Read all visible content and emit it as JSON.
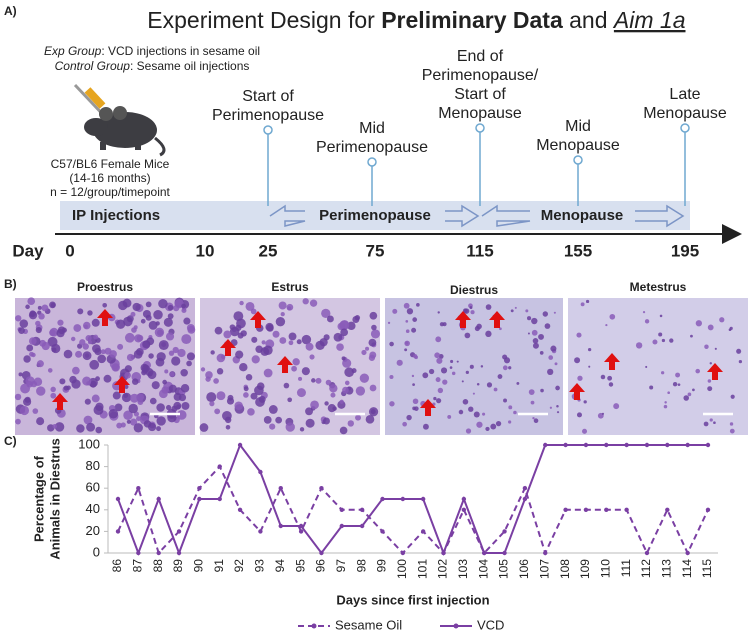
{
  "panel_a": {
    "panel_label": "A)",
    "title_parts": [
      "Experiment Design for ",
      "Preliminary Data",
      " and ",
      "Aim 1a"
    ],
    "exp_group": {
      "label": "Exp Group",
      "text": ": VCD injections in sesame oil"
    },
    "control_group": {
      "label": "Control Group",
      "text": ": Sesame oil injections"
    },
    "mouse_info": [
      "C57/BL6 Female Mice",
      "(14-16 months)",
      "n = 12/group/timepoint"
    ],
    "axis_label": "Day",
    "day_ticks": [
      0,
      10,
      25,
      75,
      115,
      155,
      195
    ],
    "milestones": [
      {
        "label_lines": [
          "Start of",
          "Perimenopause"
        ]
      },
      {
        "label_lines": [
          "Mid",
          "Perimenopause"
        ]
      },
      {
        "label_lines": [
          "End of",
          "Perimenopause/",
          "Start of",
          "Menopause"
        ]
      },
      {
        "label_lines": [
          "Mid",
          "Menopause"
        ]
      },
      {
        "label_lines": [
          "Late",
          "Menopause"
        ]
      }
    ],
    "phases": [
      "IP Injections",
      "Perimenopause",
      "Menopause"
    ]
  },
  "panel_b": {
    "panel_label": "B)",
    "images": [
      "Proestrus",
      "Estrus",
      "Diestrus",
      "Metestrus"
    ]
  },
  "chart_data": {
    "type": "line",
    "panel_label": "C)",
    "ylabel_lines": [
      "Percentage of",
      "Animals in Diestrus"
    ],
    "xlabel": "Days since first injection",
    "categories": [
      "86",
      "87",
      "88",
      "89",
      "90",
      "91",
      "92",
      "93",
      "94",
      "95",
      "96",
      "97",
      "98",
      "99",
      "100",
      "101",
      "102",
      "103",
      "104",
      "105",
      "106",
      "107",
      "108",
      "109",
      "110",
      "111",
      "112",
      "113",
      "114",
      "115"
    ],
    "ylim": [
      0,
      100
    ],
    "yticks": [
      0,
      20,
      40,
      60,
      80,
      100
    ],
    "series": [
      {
        "name": "Sesame Oil",
        "color": "#7a3fa3",
        "dashed": true,
        "values": [
          20,
          60,
          0,
          20,
          60,
          80,
          40,
          20,
          60,
          20,
          60,
          40,
          40,
          20,
          0,
          20,
          0,
          40,
          0,
          20,
          60,
          0,
          40,
          40,
          40,
          40,
          0,
          40,
          0,
          40
        ]
      },
      {
        "name": "VCD",
        "color": "#7a3fa3",
        "dashed": false,
        "values": [
          50,
          0,
          50,
          0,
          50,
          50,
          100,
          75,
          25,
          25,
          0,
          25,
          25,
          50,
          50,
          50,
          0,
          50,
          0,
          0,
          50,
          100,
          100,
          100,
          100,
          100,
          100,
          100,
          100,
          100
        ]
      }
    ]
  }
}
